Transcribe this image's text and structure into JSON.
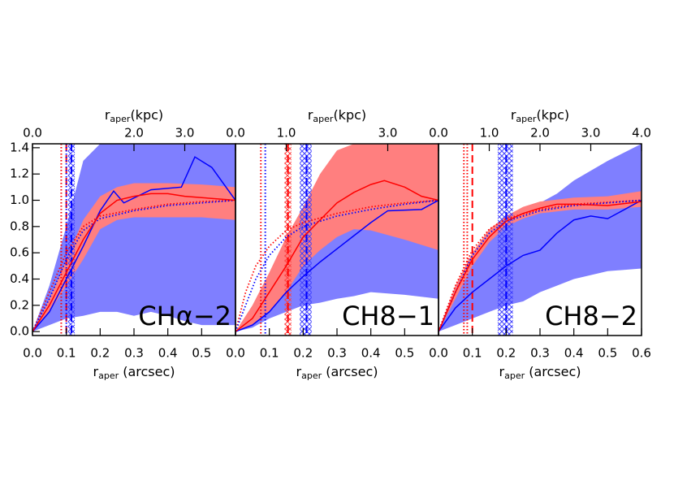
{
  "chart_data": [
    {
      "type": "line",
      "label": "CHα−2",
      "xlabel": {
        "main": "r",
        "sub": "aper",
        "rest": " (arcsec)"
      },
      "x2label": {
        "main": "r",
        "sub": "aper",
        "rest": "(kpc)"
      },
      "xlim": [
        0,
        0.6
      ],
      "xticks": [
        {
          "value": 0,
          "label": "0.0"
        },
        {
          "value": 0.1,
          "label": "0.1"
        },
        {
          "value": 0.2,
          "label": "0.2"
        },
        {
          "value": 0.3,
          "label": "0.3"
        },
        {
          "value": 0.4,
          "label": "0.4"
        },
        {
          "value": 0.5,
          "label": "0.5"
        }
      ],
      "x2lim": [
        0,
        4
      ],
      "x2ticks": [
        {
          "value": 0,
          "label": "0.0"
        },
        {
          "value": 2,
          "label": "2.0"
        },
        {
          "value": 3,
          "label": "3.0"
        }
      ],
      "ylim": [
        -0.03,
        1.43
      ],
      "yticks": [
        {
          "value": 0,
          "label": "0.0"
        },
        {
          "value": 0.2,
          "label": "0.2"
        },
        {
          "value": 0.4,
          "label": "0.4"
        },
        {
          "value": 0.6,
          "label": "0.6"
        },
        {
          "value": 0.8,
          "label": "0.8"
        },
        {
          "value": 1,
          "label": "1.0"
        },
        {
          "value": 1.2,
          "label": "1.2"
        },
        {
          "value": 1.4,
          "label": "1.4"
        }
      ],
      "bands": [
        {
          "color": "#7f7fff",
          "x": [
            0,
            0.05,
            0.1,
            0.15,
            0.2,
            0.25,
            0.3,
            0.35,
            0.4,
            0.45,
            0.5,
            0.6
          ],
          "lower": [
            0,
            0.05,
            0.1,
            0.12,
            0.15,
            0.15,
            0.12,
            0.15,
            0.12,
            0.08,
            0.05,
            0.05
          ],
          "upper": [
            0,
            0.35,
            0.8,
            1.3,
            1.43,
            1.43,
            1.43,
            1.43,
            1.43,
            1.43,
            1.43,
            1.43
          ]
        },
        {
          "color": "#ff7f7f",
          "x": [
            0,
            0.05,
            0.1,
            0.15,
            0.2,
            0.25,
            0.3,
            0.4,
            0.5,
            0.6
          ],
          "lower": [
            0,
            0.15,
            0.35,
            0.55,
            0.78,
            0.85,
            0.87,
            0.87,
            0.87,
            0.85
          ],
          "upper": [
            0,
            0.25,
            0.55,
            0.85,
            1.03,
            1.1,
            1.13,
            1.13,
            1.12,
            1.1
          ]
        }
      ],
      "hatches": [
        {
          "color": "#4040ff",
          "range": [
            0.105,
            0.125
          ]
        }
      ],
      "vlines": [
        {
          "color": "#ff0000",
          "style": "dotted",
          "value": 0.085
        },
        {
          "color": "#ff0000",
          "style": "dashed",
          "value": 0.1
        },
        {
          "color": "#0000ff",
          "style": "dotted",
          "value": 0.1
        },
        {
          "color": "#0000ff",
          "style": "dashed",
          "value": 0.115
        }
      ],
      "series": [
        {
          "color": "#ff0000",
          "style": "dotted",
          "x": [
            0,
            0.05,
            0.1,
            0.15,
            0.2,
            0.3,
            0.4,
            0.5,
            0.6
          ],
          "values": [
            0,
            0.3,
            0.6,
            0.8,
            0.88,
            0.93,
            0.97,
            0.99,
            1.0
          ]
        },
        {
          "color": "#0000ff",
          "style": "dotted",
          "x": [
            0,
            0.05,
            0.1,
            0.15,
            0.2,
            0.3,
            0.4,
            0.5,
            0.6
          ],
          "values": [
            0,
            0.25,
            0.55,
            0.77,
            0.86,
            0.92,
            0.96,
            0.98,
            1.0
          ]
        },
        {
          "color": "#0000ff",
          "style": "solid",
          "x": [
            0,
            0.05,
            0.1,
            0.15,
            0.2,
            0.24,
            0.27,
            0.35,
            0.44,
            0.48,
            0.53,
            0.6
          ],
          "values": [
            0,
            0.15,
            0.4,
            0.65,
            0.92,
            1.07,
            0.98,
            1.08,
            1.1,
            1.33,
            1.25,
            1.0
          ]
        },
        {
          "color": "#ff0000",
          "style": "solid",
          "x": [
            0,
            0.05,
            0.1,
            0.15,
            0.2,
            0.25,
            0.3,
            0.35,
            0.4,
            0.45,
            0.5,
            0.6
          ],
          "values": [
            0,
            0.2,
            0.45,
            0.7,
            0.9,
            1.0,
            1.03,
            1.05,
            1.05,
            1.03,
            1.02,
            1.0
          ]
        }
      ]
    },
    {
      "type": "line",
      "label": "CH8−1",
      "xlabel": {
        "main": "r",
        "sub": "aper",
        "rest": " (arcsec)"
      },
      "x2label": {
        "main": "r",
        "sub": "aper",
        "rest": "(kpc)"
      },
      "xlim": [
        0,
        0.6
      ],
      "xticks": [
        {
          "value": 0,
          "label": "0.0"
        },
        {
          "value": 0.1,
          "label": "0.1"
        },
        {
          "value": 0.2,
          "label": "0.2"
        },
        {
          "value": 0.3,
          "label": "0.3"
        },
        {
          "value": 0.4,
          "label": "0.4"
        },
        {
          "value": 0.5,
          "label": "0.5"
        }
      ],
      "x2lim": [
        0,
        4
      ],
      "x2ticks": [
        {
          "value": 0,
          "label": "0.0"
        },
        {
          "value": 1,
          "label": "1.0"
        },
        {
          "value": 3,
          "label": "3.0"
        }
      ],
      "ylim": [
        -0.03,
        1.43
      ],
      "bands": [
        {
          "color": "#7f7fff",
          "x": [
            0,
            0.05,
            0.1,
            0.15,
            0.2,
            0.25,
            0.3,
            0.35,
            0.4,
            0.5,
            0.6
          ],
          "lower": [
            0,
            0.03,
            0.1,
            0.15,
            0.2,
            0.22,
            0.25,
            0.27,
            0.3,
            0.28,
            0.25
          ],
          "upper": [
            0,
            0.1,
            0.25,
            0.45,
            0.65,
            0.78,
            0.85,
            0.87,
            0.9,
            0.92,
            1.0
          ]
        },
        {
          "color": "#ff7f7f",
          "x": [
            0,
            0.05,
            0.1,
            0.15,
            0.2,
            0.25,
            0.3,
            0.35,
            0.4,
            0.5,
            0.6
          ],
          "lower": [
            0,
            0.05,
            0.15,
            0.3,
            0.5,
            0.62,
            0.72,
            0.78,
            0.77,
            0.7,
            0.62
          ],
          "upper": [
            0,
            0.2,
            0.45,
            0.72,
            0.95,
            1.2,
            1.38,
            1.43,
            1.43,
            1.43,
            1.43
          ]
        }
      ],
      "hatches": [
        {
          "color": "#ff4040",
          "range": [
            0.145,
            0.165
          ]
        },
        {
          "color": "#4040ff",
          "range": [
            0.19,
            0.225
          ]
        }
      ],
      "vlines": [
        {
          "color": "#ff0000",
          "style": "dotted",
          "value": 0.075
        },
        {
          "color": "#0000ff",
          "style": "dotted",
          "value": 0.088
        },
        {
          "color": "#ff0000",
          "style": "dashed",
          "value": 0.155
        },
        {
          "color": "#0000ff",
          "style": "dashed",
          "value": 0.21
        }
      ],
      "series": [
        {
          "color": "#ff0000",
          "style": "dotted",
          "x": [
            0,
            0.03,
            0.06,
            0.1,
            0.15,
            0.2,
            0.3,
            0.4,
            0.5,
            0.6
          ],
          "values": [
            0,
            0.3,
            0.5,
            0.65,
            0.77,
            0.83,
            0.9,
            0.95,
            0.98,
            1.0
          ]
        },
        {
          "color": "#0000ff",
          "style": "dotted",
          "x": [
            0,
            0.03,
            0.06,
            0.1,
            0.15,
            0.2,
            0.3,
            0.4,
            0.5,
            0.6
          ],
          "values": [
            0,
            0.2,
            0.4,
            0.58,
            0.72,
            0.8,
            0.88,
            0.93,
            0.97,
            1.0
          ]
        },
        {
          "color": "#0000ff",
          "style": "solid",
          "x": [
            0,
            0.05,
            0.1,
            0.15,
            0.2,
            0.25,
            0.3,
            0.35,
            0.4,
            0.45,
            0.55,
            0.6
          ],
          "values": [
            0,
            0.05,
            0.15,
            0.3,
            0.42,
            0.53,
            0.63,
            0.73,
            0.83,
            0.92,
            0.93,
            1.0
          ]
        },
        {
          "color": "#ff0000",
          "style": "solid",
          "x": [
            0,
            0.05,
            0.1,
            0.15,
            0.2,
            0.25,
            0.3,
            0.35,
            0.4,
            0.44,
            0.5,
            0.55,
            0.6
          ],
          "values": [
            0,
            0.1,
            0.3,
            0.5,
            0.72,
            0.85,
            0.98,
            1.06,
            1.12,
            1.15,
            1.1,
            1.03,
            1.0
          ]
        }
      ]
    },
    {
      "type": "line",
      "label": "CH8−2",
      "xlabel": {
        "main": "r",
        "sub": "aper",
        "rest": " (arcsec)"
      },
      "x2label": {
        "main": "r",
        "sub": "aper",
        "rest": "(kpc)"
      },
      "xlim": [
        0,
        0.6
      ],
      "xticks": [
        {
          "value": 0,
          "label": "0.0"
        },
        {
          "value": 0.1,
          "label": "0.1"
        },
        {
          "value": 0.2,
          "label": "0.2"
        },
        {
          "value": 0.3,
          "label": "0.3"
        },
        {
          "value": 0.4,
          "label": "0.4"
        },
        {
          "value": 0.5,
          "label": "0.5"
        },
        {
          "value": 0.6,
          "label": "0.6"
        }
      ],
      "x2lim": [
        0,
        4
      ],
      "x2ticks": [
        {
          "value": 0,
          "label": "0.0"
        },
        {
          "value": 1,
          "label": "1.0"
        },
        {
          "value": 2,
          "label": "2.0"
        },
        {
          "value": 3,
          "label": "3.0"
        },
        {
          "value": 4,
          "label": "4.0"
        }
      ],
      "ylim": [
        -0.03,
        1.43
      ],
      "bands": [
        {
          "color": "#7f7fff",
          "x": [
            0,
            0.05,
            0.1,
            0.15,
            0.2,
            0.25,
            0.3,
            0.35,
            0.4,
            0.5,
            0.6
          ],
          "lower": [
            0,
            0.05,
            0.1,
            0.15,
            0.2,
            0.23,
            0.3,
            0.35,
            0.4,
            0.46,
            0.48
          ],
          "upper": [
            0,
            0.35,
            0.55,
            0.7,
            0.82,
            0.9,
            0.98,
            1.05,
            1.15,
            1.3,
            1.43
          ]
        },
        {
          "color": "#ff7f7f",
          "x": [
            0,
            0.05,
            0.1,
            0.15,
            0.2,
            0.25,
            0.3,
            0.4,
            0.5,
            0.6
          ],
          "lower": [
            0,
            0.25,
            0.5,
            0.68,
            0.8,
            0.86,
            0.9,
            0.93,
            0.93,
            0.95
          ],
          "upper": [
            0,
            0.35,
            0.6,
            0.78,
            0.88,
            0.95,
            0.99,
            1.02,
            1.03,
            1.07
          ]
        }
      ],
      "hatches": [
        {
          "color": "#4040ff",
          "range": [
            0.175,
            0.22
          ]
        }
      ],
      "vlines": [
        {
          "color": "#ff0000",
          "style": "dotted",
          "value": 0.075
        },
        {
          "color": "#ff0000",
          "style": "dotted",
          "value": 0.085
        },
        {
          "color": "#ff0000",
          "style": "dashed",
          "value": 0.1
        },
        {
          "color": "#0000ff",
          "style": "dashed",
          "value": 0.2
        }
      ],
      "series": [
        {
          "color": "#ff0000",
          "style": "dotted",
          "x": [
            0,
            0.05,
            0.1,
            0.15,
            0.2,
            0.3,
            0.4,
            0.6
          ],
          "values": [
            0,
            0.35,
            0.62,
            0.78,
            0.86,
            0.93,
            0.97,
            1.0
          ]
        },
        {
          "color": "#0000ff",
          "style": "dotted",
          "x": [
            0,
            0.05,
            0.1,
            0.15,
            0.2,
            0.3,
            0.4,
            0.6
          ],
          "values": [
            0,
            0.3,
            0.58,
            0.75,
            0.84,
            0.92,
            0.96,
            1.0
          ]
        },
        {
          "color": "#0000ff",
          "style": "solid",
          "x": [
            0,
            0.05,
            0.1,
            0.15,
            0.2,
            0.25,
            0.3,
            0.35,
            0.4,
            0.45,
            0.5,
            0.6
          ],
          "values": [
            0,
            0.18,
            0.3,
            0.4,
            0.5,
            0.58,
            0.62,
            0.75,
            0.85,
            0.88,
            0.86,
            1.0
          ]
        },
        {
          "color": "#ff0000",
          "style": "solid",
          "x": [
            0,
            0.05,
            0.1,
            0.15,
            0.2,
            0.25,
            0.3,
            0.35,
            0.4,
            0.5,
            0.6
          ],
          "values": [
            0,
            0.3,
            0.55,
            0.72,
            0.84,
            0.9,
            0.94,
            0.97,
            0.97,
            0.96,
            0.99
          ]
        }
      ]
    }
  ]
}
